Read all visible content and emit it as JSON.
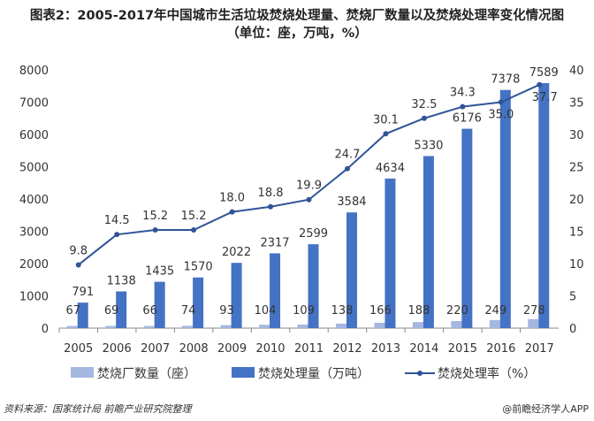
{
  "title": "图表2：2005-2017年中国城市生活垃圾焚烧处理量、焚烧厂数量以及焚烧处理率变化情况图",
  "subtitle": "（单位：座，万吨，%）",
  "source": "资料来源：国家统计局  前瞻产业研究院整理",
  "credit": "@前瞻经济学人APP",
  "chart_data": {
    "type": "bar+line",
    "categories": [
      "2005",
      "2006",
      "2007",
      "2008",
      "2009",
      "2010",
      "2011",
      "2012",
      "2013",
      "2014",
      "2015",
      "2016",
      "2017"
    ],
    "series": [
      {
        "name": "焚烧厂数量（座）",
        "type": "bar",
        "axis": "left",
        "color": "#a5b6e0",
        "values": [
          67,
          69,
          66,
          74,
          93,
          104,
          109,
          138,
          166,
          188,
          220,
          249,
          278
        ]
      },
      {
        "name": "焚烧处理量（万吨）",
        "type": "bar",
        "axis": "left",
        "color": "#4472c4",
        "values": [
          791,
          1138,
          1435,
          1570,
          2022,
          2317,
          2599,
          3584,
          4634,
          5330,
          6176,
          7378,
          7589
        ]
      },
      {
        "name": "焚烧处理率（%）",
        "type": "line",
        "axis": "right",
        "color": "#2f5597",
        "values": [
          9.8,
          14.5,
          15.2,
          15.2,
          18.0,
          18.8,
          19.9,
          24.7,
          30.1,
          32.5,
          34.3,
          35.0,
          37.7
        ]
      }
    ],
    "y_left": {
      "range": [
        0,
        8000
      ],
      "ticks": [
        "0",
        "1000",
        "2000",
        "3000",
        "4000",
        "5000",
        "6000",
        "7000",
        "8000"
      ]
    },
    "y_right": {
      "range": [
        0,
        40
      ],
      "ticks": [
        "0",
        "5",
        "10",
        "15",
        "20",
        "25",
        "30",
        "35",
        "40"
      ]
    },
    "grid": false,
    "legend": "bottom"
  }
}
